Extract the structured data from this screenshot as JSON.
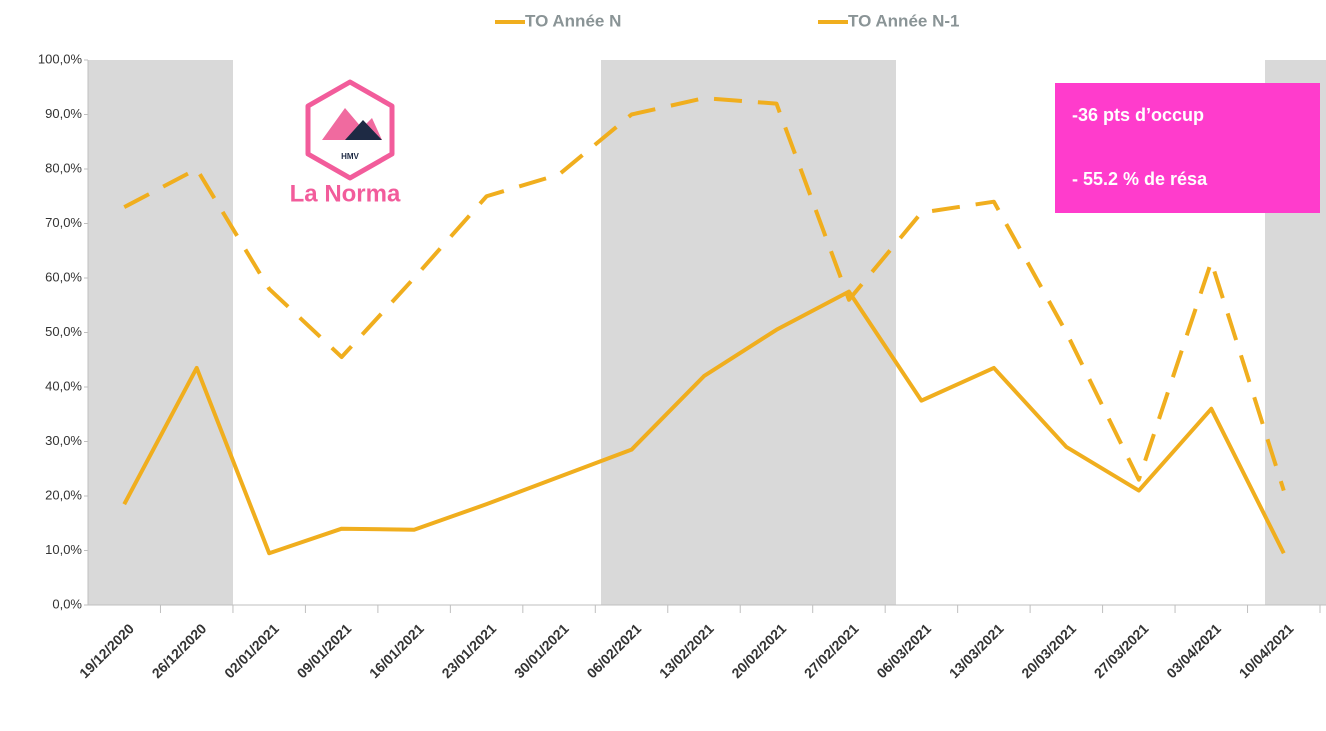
{
  "chart_data": {
    "type": "line",
    "categories": [
      "19/12/2020",
      "26/12/2020",
      "02/01/2021",
      "09/01/2021",
      "16/01/2021",
      "23/01/2021",
      "30/01/2021",
      "06/02/2021",
      "13/02/2021",
      "20/02/2021",
      "27/02/2021",
      "06/03/2021",
      "13/03/2021",
      "20/03/2021",
      "27/03/2021",
      "03/04/2021",
      "10/04/2021"
    ],
    "series": [
      {
        "name": "TO Année N",
        "color": "#f0ae1e",
        "dashed": false,
        "values": [
          18.5,
          43.5,
          9.5,
          14,
          13.8,
          18.5,
          23.5,
          28.5,
          42,
          50.5,
          57.5,
          37.5,
          43.5,
          29,
          21,
          36,
          9.5
        ]
      },
      {
        "name": "TO Année N-1",
        "color": "#f0ae1e",
        "dashed": true,
        "values": [
          73,
          80,
          58,
          45.5,
          60,
          75,
          79,
          90,
          93,
          92,
          56,
          72,
          74,
          50,
          23,
          63,
          21
        ]
      }
    ],
    "ylim": [
      0,
      100
    ],
    "yticks": [
      {
        "value": 0,
        "label": "0,0%"
      },
      {
        "value": 10,
        "label": "10,0%"
      },
      {
        "value": 20,
        "label": "20,0%"
      },
      {
        "value": 30,
        "label": "30,0%"
      },
      {
        "value": 40,
        "label": "40,0%"
      },
      {
        "value": 50,
        "label": "50,0%"
      },
      {
        "value": 60,
        "label": "60,0%"
      },
      {
        "value": 70,
        "label": "70,0%"
      },
      {
        "value": 80,
        "label": "80,0%"
      },
      {
        "value": 90,
        "label": "90,0%"
      },
      {
        "value": 100,
        "label": "100,0%"
      }
    ],
    "annotations": [
      "-36 pts d’occup",
      "- 55.2 % de résa"
    ]
  },
  "logo": {
    "badge": "HMV",
    "text": "La Norma"
  }
}
